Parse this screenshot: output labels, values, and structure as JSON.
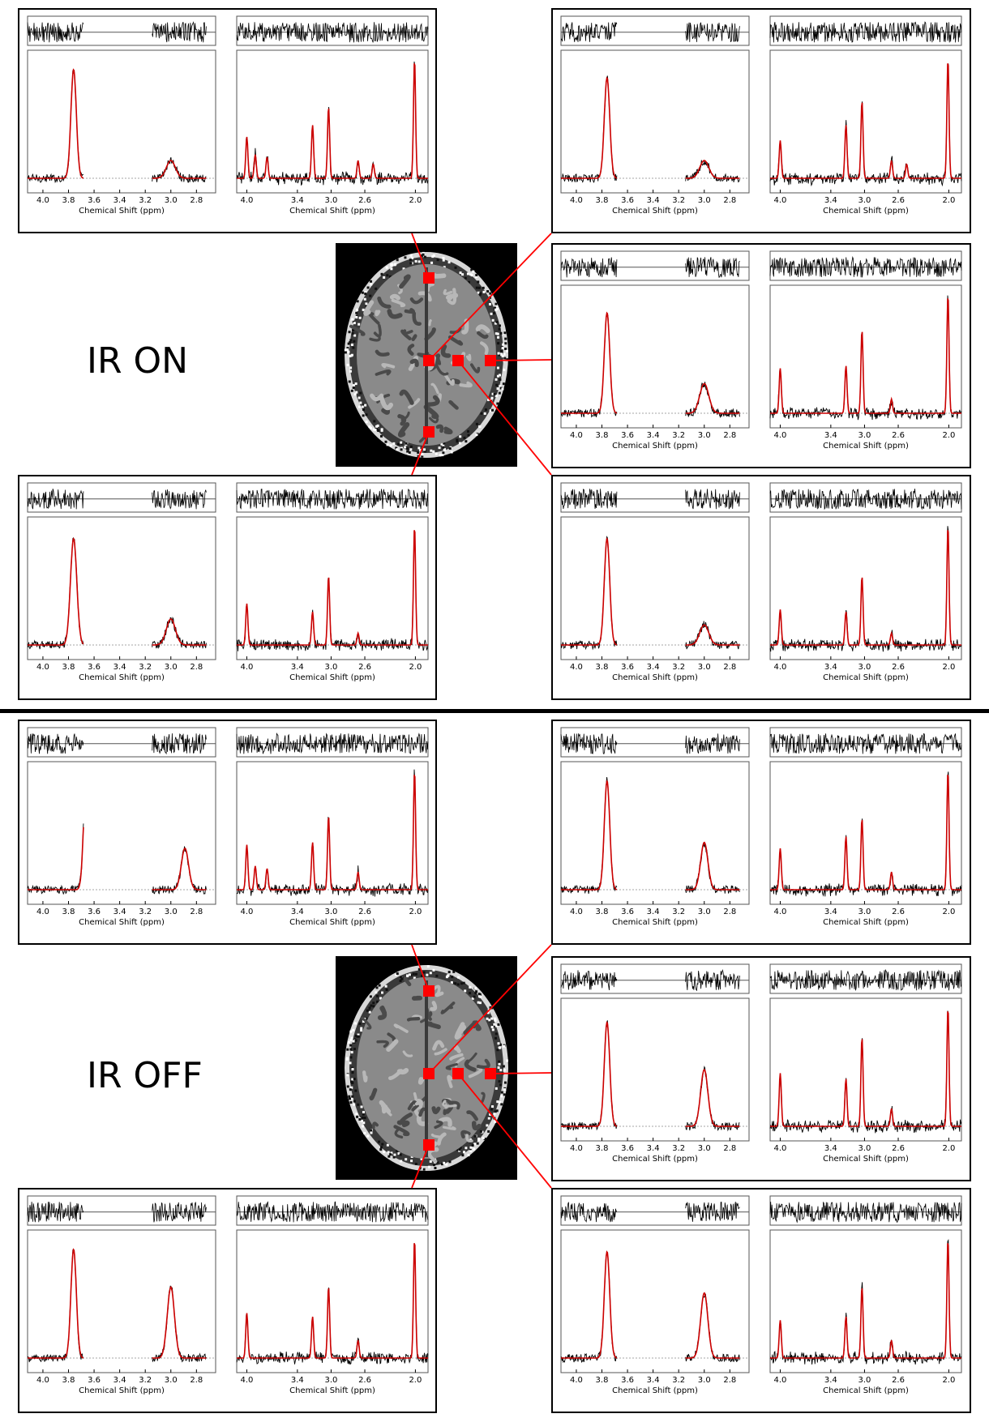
{
  "sections": [
    {
      "label": "IR ON",
      "panels": [
        {
          "id": "on-top-left",
          "left": {
            "tick_labels": [
              "4.0",
              "3.8",
              "3.6",
              "3.4",
              "3.2",
              "3.0",
              "2.8"
            ],
            "visible_ticks": [
              "4.0",
              "3.8",
              "3.6",
              "3.4",
              "3.2",
              "3.0",
              "2.8"
            ],
            "xlabel": "Chemical Shift (ppm)",
            "peaks": [
              {
                "ppm": 3.76,
                "height": 0.92,
                "width": 0.03
              },
              {
                "ppm": 3.0,
                "height": 0.15,
                "width": 0.05
              }
            ]
          },
          "right": {
            "tick_labels": [
              "4.0",
              "3.4",
              "3.0",
              "2.6",
              "2.0"
            ],
            "visible_ticks": [
              "4.0",
              "3.4",
              "3.0",
              "2.6",
              "2.0"
            ],
            "xlabel": "Chemical Shift (ppm)",
            "peaks": [
              {
                "ppm": 4.0,
                "height": 0.35
              },
              {
                "ppm": 3.9,
                "height": 0.2
              },
              {
                "ppm": 3.76,
                "height": 0.18
              },
              {
                "ppm": 3.22,
                "height": 0.45
              },
              {
                "ppm": 3.03,
                "height": 0.6
              },
              {
                "ppm": 2.68,
                "height": 0.15
              },
              {
                "ppm": 2.5,
                "height": 0.12
              },
              {
                "ppm": 2.01,
                "height": 1.0
              }
            ]
          }
        },
        {
          "id": "on-top-right",
          "left": {
            "tick_labels": [
              "4.0",
              "3.8",
              "3.6",
              "3.4",
              "3.2",
              "3.0",
              "2.8"
            ],
            "visible_ticks": [
              "4.0",
              "3.8",
              "3.6",
              "3.4",
              "3.2",
              "3.0",
              "2.8"
            ],
            "xlabel": "Chemical Shift (ppm)",
            "peaks": [
              {
                "ppm": 3.76,
                "height": 0.85,
                "width": 0.03
              },
              {
                "ppm": 3.0,
                "height": 0.15,
                "width": 0.05
              }
            ]
          },
          "right": {
            "tick_labels": [
              "4.0",
              "3.4",
              "3.0",
              "2.6",
              "2.0"
            ],
            "visible_ticks": [
              "4.0",
              "3.4",
              "3.0",
              "2.6",
              "2.0"
            ],
            "xlabel": "Chemical Shift (ppm)",
            "peaks": [
              {
                "ppm": 4.0,
                "height": 0.32
              },
              {
                "ppm": 3.22,
                "height": 0.45
              },
              {
                "ppm": 3.03,
                "height": 0.65
              },
              {
                "ppm": 2.68,
                "height": 0.15
              },
              {
                "ppm": 2.5,
                "height": 0.12
              },
              {
                "ppm": 2.01,
                "height": 1.0
              }
            ]
          }
        },
        {
          "id": "on-mid-right",
          "left": {
            "tick_labels": [
              "4.0",
              "3.8",
              "3.6",
              "3.4",
              "3.2",
              "3.0",
              "2.8"
            ],
            "visible_ticks": [
              "4.0",
              "3.8",
              "3.6",
              "3.4",
              "3.2",
              "3.0",
              "2.8"
            ],
            "xlabel": "Chemical Shift (ppm)",
            "peaks": [
              {
                "ppm": 3.76,
                "height": 0.85,
                "width": 0.03
              },
              {
                "ppm": 3.0,
                "height": 0.25,
                "width": 0.05
              }
            ]
          },
          "right": {
            "tick_labels": [
              "4.0",
              "3.4",
              "3.0",
              "2.6",
              "2.0"
            ],
            "visible_ticks": [
              "4.0",
              "3.4",
              "3.0",
              "2.6",
              "2.0"
            ],
            "xlabel": "Chemical Shift (ppm)",
            "peaks": [
              {
                "ppm": 4.0,
                "height": 0.38
              },
              {
                "ppm": 3.22,
                "height": 0.4
              },
              {
                "ppm": 3.03,
                "height": 0.7
              },
              {
                "ppm": 2.68,
                "height": 0.12
              },
              {
                "ppm": 2.01,
                "height": 1.0
              }
            ]
          }
        },
        {
          "id": "on-bottom-left",
          "left": {
            "tick_labels": [
              "4.0",
              "3.8",
              "3.6",
              "3.4",
              "3.2",
              "3.0",
              "2.8"
            ],
            "visible_ticks": [
              "4.0",
              "3.8",
              "3.6",
              "3.4",
              "3.2",
              "3.0",
              "2.8"
            ],
            "xlabel": "Chemical Shift (ppm)",
            "peaks": [
              {
                "ppm": 3.76,
                "height": 0.9,
                "width": 0.035
              },
              {
                "ppm": 3.0,
                "height": 0.22,
                "width": 0.05
              }
            ]
          },
          "right": {
            "tick_labels": [
              "4.0",
              "3.4",
              "3.0",
              "2.6",
              "2.0"
            ],
            "visible_ticks": [
              "4.0",
              "3.4",
              "3.0",
              "2.6",
              "2.0"
            ],
            "xlabel": "Chemical Shift (ppm)",
            "peaks": [
              {
                "ppm": 4.0,
                "height": 0.35
              },
              {
                "ppm": 3.22,
                "height": 0.28
              },
              {
                "ppm": 3.03,
                "height": 0.58
              },
              {
                "ppm": 2.68,
                "height": 0.1
              },
              {
                "ppm": 2.01,
                "height": 1.0
              }
            ]
          }
        },
        {
          "id": "on-bottom-right",
          "left": {
            "tick_labels": [
              "4.0",
              "3.8",
              "3.6",
              "3.4",
              "3.2",
              "3.0",
              "2.8"
            ],
            "visible_ticks": [
              "4.0",
              "3.8",
              "3.6",
              "3.4",
              "3.2",
              "3.0",
              "2.8"
            ],
            "xlabel": "Chemical Shift (ppm)",
            "peaks": [
              {
                "ppm": 3.76,
                "height": 0.9,
                "width": 0.03
              },
              {
                "ppm": 3.0,
                "height": 0.17,
                "width": 0.05
              }
            ]
          },
          "right": {
            "tick_labels": [
              "4.0",
              "3.4",
              "3.0",
              "2.6",
              "2.0"
            ],
            "visible_ticks": [
              "4.0",
              "3.4",
              "3.0",
              "2.6",
              "2.0"
            ],
            "xlabel": "Chemical Shift (ppm)",
            "peaks": [
              {
                "ppm": 4.0,
                "height": 0.3
              },
              {
                "ppm": 3.22,
                "height": 0.28
              },
              {
                "ppm": 3.03,
                "height": 0.58
              },
              {
                "ppm": 2.68,
                "height": 0.1
              },
              {
                "ppm": 2.01,
                "height": 1.0
              }
            ]
          }
        }
      ]
    },
    {
      "label": "IR OFF",
      "panels": [
        {
          "id": "off-top-left",
          "left": {
            "tick_labels": [
              "4.0",
              "3.8",
              "3.6",
              "3.4",
              "3.2",
              "3.0",
              "2.8"
            ],
            "visible_ticks": [
              "4.0",
              "3.8",
              "3.6",
              "3.4",
              "3.2",
              "3.0",
              "2.8"
            ],
            "xlabel": "Chemical Shift (ppm)",
            "peaks": [
              {
                "ppm": 3.66,
                "height": 0.98,
                "width": 0.03
              },
              {
                "ppm": 2.89,
                "height": 0.35,
                "width": 0.04
              }
            ]
          },
          "right": {
            "tick_labels": [
              "4.0",
              "3.4",
              "3.0",
              "2.6",
              "2.0"
            ],
            "visible_ticks": [
              "4.0",
              "3.4",
              "3.0",
              "2.6",
              "2.0"
            ],
            "xlabel": "Chemical Shift (ppm)",
            "peaks": [
              {
                "ppm": 4.0,
                "height": 0.38
              },
              {
                "ppm": 3.9,
                "height": 0.2
              },
              {
                "ppm": 3.76,
                "height": 0.18
              },
              {
                "ppm": 3.22,
                "height": 0.4
              },
              {
                "ppm": 3.03,
                "height": 0.62
              },
              {
                "ppm": 2.68,
                "height": 0.15
              },
              {
                "ppm": 2.01,
                "height": 1.0
              }
            ]
          }
        },
        {
          "id": "off-top-right",
          "left": {
            "tick_labels": [
              "4.0",
              "3.8",
              "3.6",
              "3.4",
              "3.2",
              "3.0",
              "2.8"
            ],
            "visible_ticks": [
              "4.0",
              "3.8",
              "3.6",
              "3.4",
              "3.2",
              "3.0",
              "2.8"
            ],
            "xlabel": "Chemical Shift (ppm)",
            "peaks": [
              {
                "ppm": 3.76,
                "height": 0.92,
                "width": 0.03
              },
              {
                "ppm": 3.0,
                "height": 0.4,
                "width": 0.04
              }
            ]
          },
          "right": {
            "tick_labels": [
              "4.0",
              "3.4",
              "3.0",
              "2.6",
              "2.0"
            ],
            "visible_ticks": [
              "4.0",
              "3.4",
              "3.0",
              "2.6",
              "2.0"
            ],
            "xlabel": "Chemical Shift (ppm)",
            "peaks": [
              {
                "ppm": 4.0,
                "height": 0.35
              },
              {
                "ppm": 3.22,
                "height": 0.45
              },
              {
                "ppm": 3.03,
                "height": 0.6
              },
              {
                "ppm": 2.68,
                "height": 0.15
              },
              {
                "ppm": 2.01,
                "height": 1.0
              }
            ]
          }
        },
        {
          "id": "off-mid-right",
          "left": {
            "tick_labels": [
              "4.0",
              "3.8",
              "3.6",
              "3.4",
              "3.2",
              "3.0",
              "2.8"
            ],
            "visible_ticks": [
              "4.0",
              "3.8",
              "3.6",
              "3.4",
              "3.2",
              "3.0",
              "2.8"
            ],
            "xlabel": "Chemical Shift (ppm)",
            "peaks": [
              {
                "ppm": 3.76,
                "height": 0.88,
                "width": 0.03
              },
              {
                "ppm": 3.0,
                "height": 0.48,
                "width": 0.04
              }
            ]
          },
          "right": {
            "tick_labels": [
              "4.0",
              "3.4",
              "3.0",
              "2.6",
              "2.0"
            ],
            "visible_ticks": [
              "4.0",
              "3.4",
              "3.0",
              "2.6",
              "2.0"
            ],
            "xlabel": "Chemical Shift (ppm)",
            "peaks": [
              {
                "ppm": 4.0,
                "height": 0.45
              },
              {
                "ppm": 3.22,
                "height": 0.4
              },
              {
                "ppm": 3.03,
                "height": 0.75
              },
              {
                "ppm": 2.68,
                "height": 0.15
              },
              {
                "ppm": 2.01,
                "height": 1.0
              }
            ]
          }
        },
        {
          "id": "off-bottom-left",
          "left": {
            "tick_labels": [
              "4.0",
              "3.8",
              "3.6",
              "3.4",
              "3.2",
              "3.0",
              "2.8"
            ],
            "visible_ticks": [
              "4.0",
              "3.8",
              "3.6",
              "3.4",
              "3.2",
              "3.0",
              "2.8"
            ],
            "xlabel": "Chemical Shift (ppm)",
            "peaks": [
              {
                "ppm": 3.76,
                "height": 0.92,
                "width": 0.03
              },
              {
                "ppm": 3.0,
                "height": 0.6,
                "width": 0.04
              }
            ]
          },
          "right": {
            "tick_labels": [
              "4.0",
              "3.4",
              "3.0",
              "2.6",
              "2.0"
            ],
            "visible_ticks": [
              "4.0",
              "3.4",
              "3.0",
              "2.6",
              "2.0"
            ],
            "xlabel": "Chemical Shift (ppm)",
            "peaks": [
              {
                "ppm": 4.0,
                "height": 0.38
              },
              {
                "ppm": 3.22,
                "height": 0.35
              },
              {
                "ppm": 3.03,
                "height": 0.6
              },
              {
                "ppm": 2.68,
                "height": 0.15
              },
              {
                "ppm": 2.01,
                "height": 1.0
              }
            ]
          }
        },
        {
          "id": "off-bottom-right",
          "left": {
            "tick_labels": [
              "4.0",
              "3.8",
              "3.6",
              "3.4",
              "3.2",
              "3.0",
              "2.8"
            ],
            "visible_ticks": [
              "4.0",
              "3.8",
              "3.6",
              "3.4",
              "3.2",
              "3.0",
              "2.8"
            ],
            "xlabel": "Chemical Shift (ppm)",
            "peaks": [
              {
                "ppm": 3.76,
                "height": 0.9,
                "width": 0.03
              },
              {
                "ppm": 3.0,
                "height": 0.55,
                "width": 0.04
              }
            ]
          },
          "right": {
            "tick_labels": [
              "4.0",
              "3.4",
              "3.0",
              "2.6",
              "2.0"
            ],
            "visible_ticks": [
              "4.0",
              "3.4",
              "3.0",
              "2.6",
              "2.0"
            ],
            "xlabel": "Chemical Shift (ppm)",
            "peaks": [
              {
                "ppm": 4.0,
                "height": 0.32
              },
              {
                "ppm": 3.22,
                "height": 0.35
              },
              {
                "ppm": 3.03,
                "height": 0.6
              },
              {
                "ppm": 2.68,
                "height": 0.15
              },
              {
                "ppm": 2.01,
                "height": 1.0
              }
            ]
          }
        }
      ]
    }
  ],
  "colors": {
    "data_trace": "#000000",
    "fit_trace": "#cc0000",
    "voxel_marker": "#ff0000",
    "connector": "#ff0000",
    "panel_border": "#000000"
  }
}
